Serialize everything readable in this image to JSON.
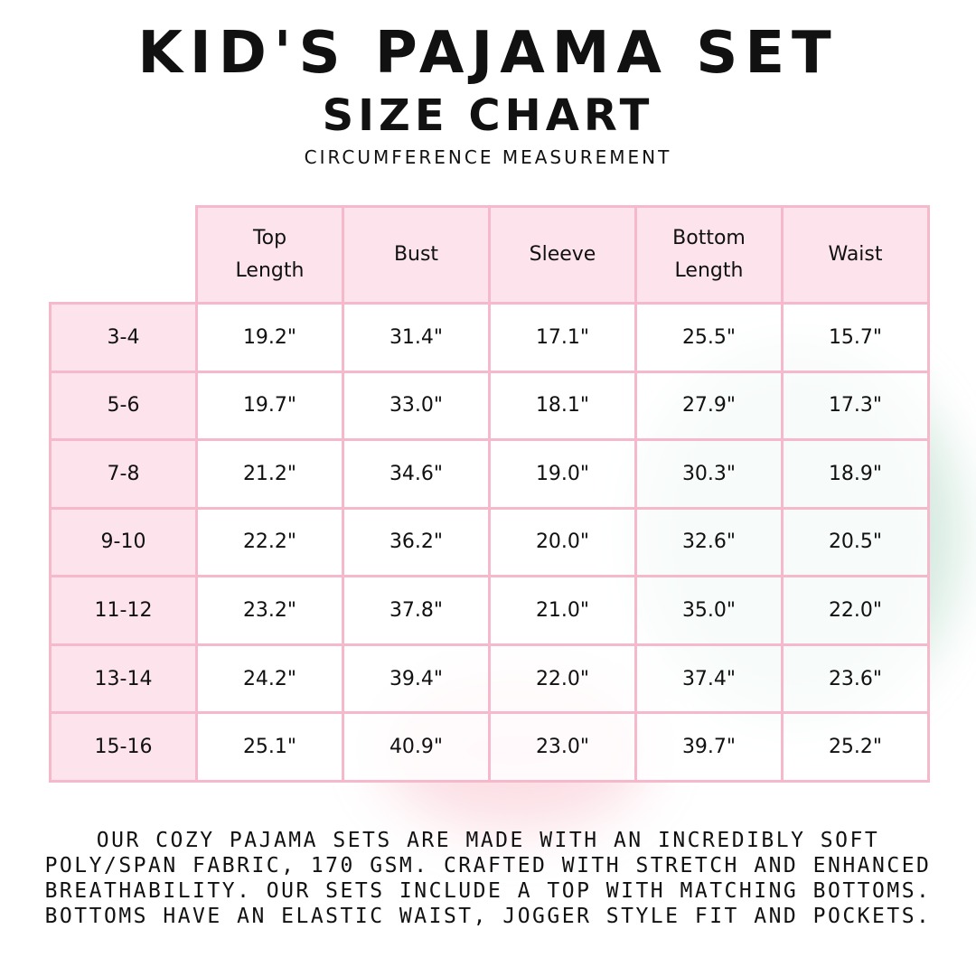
{
  "title": "KID'S PAJAMA SET",
  "subtitle": "SIZE CHART",
  "note": "CIRCUMFERENCE MEASUREMENT",
  "colors": {
    "border": "#f6b9cc",
    "header_fill": "#fde3ec"
  },
  "table": {
    "columns": [
      "Top Length",
      "Bust",
      "Sleeve",
      "Bottom Length",
      "Waist"
    ],
    "rows": [
      {
        "size": "3-4",
        "values": [
          "19.2\"",
          "31.4\"",
          "17.1\"",
          "25.5\"",
          "15.7\""
        ]
      },
      {
        "size": "5-6",
        "values": [
          "19.7\"",
          "33.0\"",
          "18.1\"",
          "27.9\"",
          "17.3\""
        ]
      },
      {
        "size": "7-8",
        "values": [
          "21.2\"",
          "34.6\"",
          "19.0\"",
          "30.3\"",
          "18.9\""
        ]
      },
      {
        "size": "9-10",
        "values": [
          "22.2\"",
          "36.2\"",
          "20.0\"",
          "32.6\"",
          "20.5\""
        ]
      },
      {
        "size": "11-12",
        "values": [
          "23.2\"",
          "37.8\"",
          "21.0\"",
          "35.0\"",
          "22.0\""
        ]
      },
      {
        "size": "13-14",
        "values": [
          "24.2\"",
          "39.4\"",
          "22.0\"",
          "37.4\"",
          "23.6\""
        ]
      },
      {
        "size": "15-16",
        "values": [
          "25.1\"",
          "40.9\"",
          "23.0\"",
          "39.7\"",
          "25.2\""
        ]
      }
    ]
  },
  "description": [
    "Our cozy pajama sets are made with an incredibly soft",
    "poly/span fabric, 170 GSM. Crafted with stretch and enhanced",
    "breathability. Our sets include a top with matching bottoms.",
    "Bottoms have an elastic waist, jogger style fit and pockets."
  ]
}
